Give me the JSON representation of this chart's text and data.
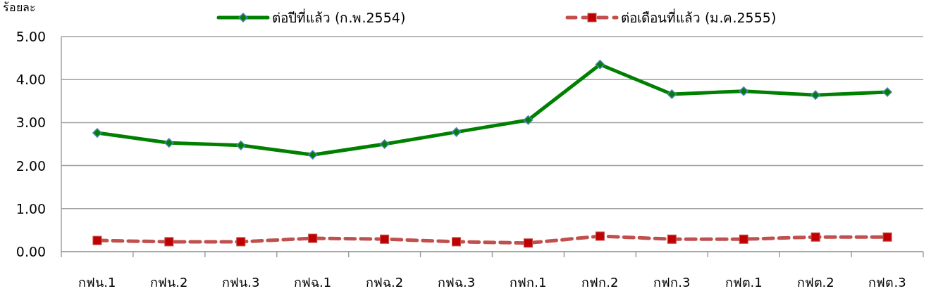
{
  "chart_data": {
    "type": "line",
    "ylabel": "ร้อยละ",
    "categories": [
      "กฟน.1",
      "กฟน.2",
      "กฟน.3",
      "กฟฉ.1",
      "กฟฉ.2",
      "กฟฉ.3",
      "กฟก.1",
      "กฟก.2",
      "กฟก.3",
      "กฟต.1",
      "กฟต.2",
      "กฟต.3"
    ],
    "series": [
      {
        "name": "ต่อปีที่แล้ว (ก.พ.2554)",
        "color": "#008000",
        "marker": "diamond",
        "line_style": "solid",
        "values": [
          2.76,
          2.53,
          2.47,
          2.25,
          2.5,
          2.78,
          3.06,
          4.35,
          3.66,
          3.73,
          3.64,
          3.71
        ]
      },
      {
        "name": "ต่อเดือนที่แล้ว (ม.ค.2555)",
        "color": "#c0504d",
        "marker": "square",
        "line_style": "dashed",
        "values": [
          0.26,
          0.23,
          0.23,
          0.31,
          0.29,
          0.23,
          0.2,
          0.36,
          0.29,
          0.29,
          0.34,
          0.34
        ]
      }
    ],
    "ylim": [
      0,
      5
    ],
    "yticks": [
      {
        "value": 0,
        "label": "0.00"
      },
      {
        "value": 1,
        "label": "1.00"
      },
      {
        "value": 2,
        "label": "2.00"
      },
      {
        "value": 3,
        "label": "3.00"
      },
      {
        "value": 4,
        "label": "4.00"
      },
      {
        "value": 5,
        "label": "5.00"
      }
    ],
    "grid": "y",
    "legend": "top"
  }
}
